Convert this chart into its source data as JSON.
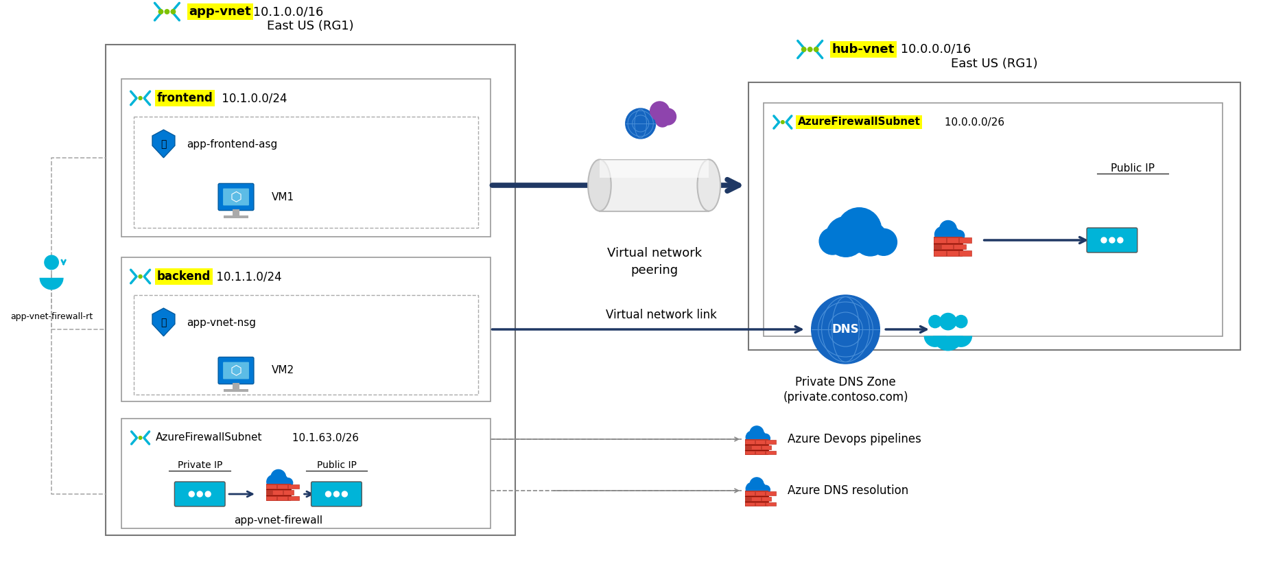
{
  "bg_color": "#ffffff",
  "yellow": "#ffff00",
  "cyan": "#00b4d8",
  "navy": "#1f3864",
  "blue": "#0078d4",
  "gray_border": "#888888",
  "left_region": "East US (RG1)",
  "right_region": "East US (RG1)",
  "app_vnet_name": "app-vnet",
  "app_vnet_cidr": " 10.1.0.0/16",
  "hub_vnet_name": "hub-vnet",
  "hub_vnet_cidr": " 10.0.0.0/16",
  "frontend_name": "frontend",
  "frontend_cidr": " 10.1.0.0/24",
  "backend_name": "backend",
  "backend_cidr": " 10.1.1.0/24",
  "fw_subnet_name": "AzureFirewallSubnet",
  "fw_subnet_cidr": " 10.1.63.0/26",
  "hub_fw_subnet_name": "AzureFirewallSubnet",
  "hub_fw_subnet_cidr": " 10.0.0.0/26",
  "asg_label": "app-frontend-asg",
  "nsg_label": "app-vnet-nsg",
  "vm1_label": "VM1",
  "vm2_label": "VM2",
  "fw_label": "app-vnet-firewall",
  "private_ip": "Private IP",
  "public_ip": "Public IP",
  "peering_label1": "Virtual network",
  "peering_label2": "peering",
  "vnet_link_label": "Virtual network link",
  "dns_label": "DNS",
  "dns_zone1": "Private DNS Zone",
  "dns_zone2": "(private.contoso.com)",
  "devops_label": "Azure Devops pipelines",
  "dns_res_label": "Azure DNS resolution",
  "user_label": "app-vnet-firewall-rt"
}
